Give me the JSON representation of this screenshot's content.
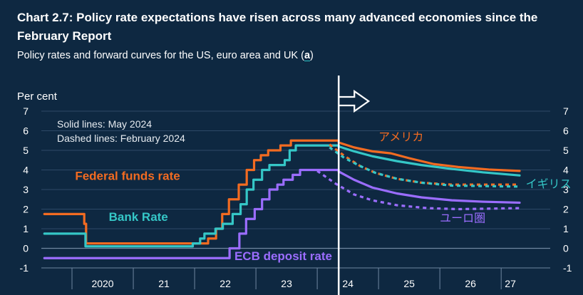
{
  "title": "Chart 2.7: Policy rate expectations have risen across many advanced economies since the February Report",
  "subtitle_text": "Policy rates and forward curves for the US, euro area and UK (",
  "subtitle_note": "a",
  "subtitle_close": ")",
  "chart_data": {
    "type": "line",
    "ylabel": "Per cent",
    "ylim": [
      -1,
      7
    ],
    "yticks": [
      -1,
      0,
      1,
      2,
      3,
      4,
      5,
      6,
      7
    ],
    "x_unit": "year (fractional)",
    "xlim": [
      2019.5,
      2027.8
    ],
    "x_tick_labels": [
      {
        "label": "2020",
        "x": 2020.5
      },
      {
        "label": "21",
        "x": 2021.5
      },
      {
        "label": "22",
        "x": 2022.5
      },
      {
        "label": "23",
        "x": 2023.5
      },
      {
        "label": "24",
        "x": 2024.5
      },
      {
        "label": "25",
        "x": 2025.5
      },
      {
        "label": "26",
        "x": 2026.5
      },
      {
        "label": "27",
        "x": 2027.15
      }
    ],
    "year_boundaries": [
      2020,
      2021,
      2022,
      2023,
      2024,
      2025,
      2026,
      2027
    ],
    "vertical_line_x": 2024.35,
    "legend_notes": [
      "Solid lines: May 2024",
      "Dashed lines: February 2024"
    ],
    "colors": {
      "us": "#f26b21",
      "uk": "#35c7c7",
      "ecb": "#9b6dff",
      "grid": "#2d4866",
      "text": "#ffffff"
    },
    "series": [
      {
        "name": "Federal funds rate",
        "key": "us",
        "style": "step",
        "points": [
          [
            2019.55,
            1.75
          ],
          [
            2020.17,
            1.75
          ],
          [
            2020.2,
            1.25
          ],
          [
            2020.23,
            0.25
          ],
          [
            2022.2,
            0.25
          ],
          [
            2022.22,
            0.5
          ],
          [
            2022.35,
            1.0
          ],
          [
            2022.45,
            1.75
          ],
          [
            2022.56,
            2.5
          ],
          [
            2022.72,
            3.25
          ],
          [
            2022.85,
            4.0
          ],
          [
            2022.97,
            4.5
          ],
          [
            2023.08,
            4.75
          ],
          [
            2023.2,
            5.0
          ],
          [
            2023.4,
            5.25
          ],
          [
            2023.57,
            5.5
          ],
          [
            2024.35,
            5.5
          ]
        ]
      },
      {
        "name": "Bank Rate",
        "key": "uk",
        "style": "step",
        "points": [
          [
            2019.55,
            0.75
          ],
          [
            2020.2,
            0.75
          ],
          [
            2020.22,
            0.1
          ],
          [
            2021.95,
            0.1
          ],
          [
            2021.97,
            0.25
          ],
          [
            2022.09,
            0.5
          ],
          [
            2022.16,
            0.75
          ],
          [
            2022.34,
            1.0
          ],
          [
            2022.46,
            1.25
          ],
          [
            2022.62,
            1.75
          ],
          [
            2022.75,
            2.25
          ],
          [
            2022.85,
            3.0
          ],
          [
            2022.96,
            3.5
          ],
          [
            2023.1,
            4.0
          ],
          [
            2023.22,
            4.25
          ],
          [
            2023.47,
            4.5
          ],
          [
            2023.55,
            5.0
          ],
          [
            2023.65,
            5.25
          ],
          [
            2024.35,
            5.25
          ]
        ]
      },
      {
        "name": "ECB deposit rate",
        "key": "ecb",
        "style": "step",
        "points": [
          [
            2019.55,
            -0.5
          ],
          [
            2022.55,
            -0.5
          ],
          [
            2022.57,
            0.0
          ],
          [
            2022.73,
            0.75
          ],
          [
            2022.84,
            1.5
          ],
          [
            2022.98,
            2.0
          ],
          [
            2023.1,
            2.5
          ],
          [
            2023.22,
            3.0
          ],
          [
            2023.35,
            3.25
          ],
          [
            2023.45,
            3.5
          ],
          [
            2023.6,
            3.75
          ],
          [
            2023.72,
            4.0
          ],
          [
            2024.35,
            4.0
          ]
        ]
      },
      {
        "name": "アメリカ",
        "key": "us",
        "style": "solid",
        "points": [
          [
            2024.35,
            5.4
          ],
          [
            2024.6,
            5.15
          ],
          [
            2024.9,
            4.95
          ],
          [
            2025.2,
            4.85
          ],
          [
            2025.5,
            4.6
          ],
          [
            2025.9,
            4.3
          ],
          [
            2026.3,
            4.15
          ],
          [
            2026.8,
            4.02
          ],
          [
            2027.3,
            3.95
          ]
        ]
      },
      {
        "name": "イギリス",
        "key": "uk",
        "style": "solid",
        "points": [
          [
            2024.35,
            5.2
          ],
          [
            2024.6,
            4.95
          ],
          [
            2024.9,
            4.7
          ],
          [
            2025.3,
            4.45
          ],
          [
            2025.7,
            4.25
          ],
          [
            2026.2,
            4.05
          ],
          [
            2026.7,
            3.88
          ],
          [
            2027.3,
            3.72
          ]
        ]
      },
      {
        "name": "ユーロ圏",
        "key": "ecb",
        "style": "solid",
        "points": [
          [
            2024.35,
            3.92
          ],
          [
            2024.6,
            3.5
          ],
          [
            2024.9,
            3.1
          ],
          [
            2025.3,
            2.8
          ],
          [
            2025.7,
            2.6
          ],
          [
            2026.2,
            2.45
          ],
          [
            2026.7,
            2.38
          ],
          [
            2027.3,
            2.33
          ]
        ]
      },
      {
        "name": "",
        "key": "us",
        "style": "dashed",
        "points": [
          [
            2024.2,
            5.3
          ],
          [
            2024.45,
            4.7
          ],
          [
            2024.7,
            4.2
          ],
          [
            2024.95,
            3.85
          ],
          [
            2025.3,
            3.55
          ],
          [
            2025.7,
            3.35
          ],
          [
            2026.2,
            3.25
          ],
          [
            2027.3,
            3.25
          ]
        ]
      },
      {
        "name": "",
        "key": "uk",
        "style": "dashed",
        "points": [
          [
            2024.2,
            5.15
          ],
          [
            2024.45,
            4.6
          ],
          [
            2024.7,
            4.2
          ],
          [
            2024.95,
            3.85
          ],
          [
            2025.3,
            3.55
          ],
          [
            2025.7,
            3.35
          ],
          [
            2026.2,
            3.2
          ],
          [
            2027.3,
            3.15
          ]
        ]
      },
      {
        "name": "",
        "key": "ecb",
        "style": "dashed",
        "points": [
          [
            2024.0,
            3.95
          ],
          [
            2024.3,
            3.3
          ],
          [
            2024.6,
            2.75
          ],
          [
            2024.9,
            2.45
          ],
          [
            2025.3,
            2.2
          ],
          [
            2025.8,
            2.05
          ],
          [
            2026.3,
            2.0
          ],
          [
            2027.3,
            2.05
          ]
        ]
      }
    ],
    "series_labels": [
      {
        "text": "Federal funds rate",
        "key": "us",
        "x": 2020.05,
        "y": 3.5,
        "bold": true
      },
      {
        "text": "Bank Rate",
        "key": "uk",
        "x": 2020.6,
        "y": 1.4,
        "bold": true
      },
      {
        "text": "ECB deposit rate",
        "key": "ecb",
        "x": 2022.65,
        "y": -0.6,
        "bold": true
      },
      {
        "text": "アメリカ",
        "key": "us",
        "x": 2025.0,
        "y": 5.5,
        "bold": false
      },
      {
        "text": "イギリス",
        "key": "uk",
        "x": 2027.4,
        "y": 3.1,
        "bold": false
      },
      {
        "text": "ユーロ圏",
        "key": "ecb",
        "x": 2026.0,
        "y": 1.35,
        "bold": false
      }
    ]
  }
}
